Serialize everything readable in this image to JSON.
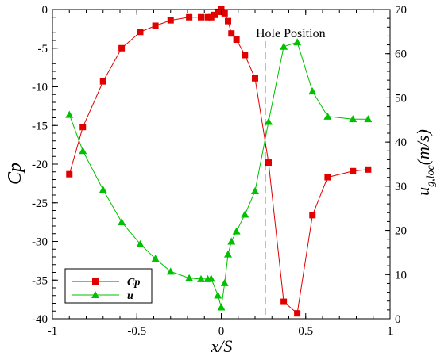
{
  "chart_data": {
    "type": "line",
    "xlabel": "x/S",
    "ylabel_left": "Cp",
    "ylabel_right_main": "u",
    "ylabel_right_sub": "g,loc",
    "ylabel_right_unit": "(m/s)",
    "xlim": [
      -1,
      1
    ],
    "ylim_left": [
      -40,
      0
    ],
    "ylim_right": [
      0,
      70
    ],
    "x_ticks": [
      "-1",
      "-0.5",
      "0",
      "0.5",
      "1"
    ],
    "y_left_ticks": [
      "0",
      "-5",
      "-10",
      "-15",
      "-20",
      "-25",
      "-30",
      "-35",
      "-40"
    ],
    "y_right_ticks": [
      "0",
      "10",
      "20",
      "30",
      "40",
      "50",
      "60",
      "70"
    ],
    "annotation": {
      "text": "Hole Position",
      "x": 0.26
    },
    "legend": {
      "placement": "bottom-left",
      "entries": [
        "Cp",
        "u"
      ]
    },
    "series": [
      {
        "name": "Cp",
        "axis": "left",
        "color": "#e00000",
        "marker": "square",
        "x": [
          -0.9,
          -0.82,
          -0.7,
          -0.59,
          -0.48,
          -0.39,
          -0.3,
          -0.19,
          -0.12,
          -0.08,
          -0.06,
          -0.04,
          -0.02,
          0.0,
          0.02,
          0.04,
          0.06,
          0.09,
          0.14,
          0.2,
          0.28,
          0.37,
          0.45,
          0.54,
          0.63,
          0.78,
          0.87
        ],
        "values": [
          -21.3,
          -15.2,
          -9.3,
          -5.0,
          -2.9,
          -2.1,
          -1.4,
          -1.0,
          -1.0,
          -1.0,
          -1.0,
          -0.7,
          -0.3,
          0.0,
          -0.5,
          -1.5,
          -3.1,
          -3.9,
          -5.9,
          -8.9,
          -19.8,
          -37.8,
          -39.3,
          -26.6,
          -21.7,
          -20.9,
          -20.7
        ]
      },
      {
        "name": "u",
        "axis": "right",
        "color": "#00c000",
        "marker": "triangle",
        "x": [
          -0.9,
          -0.82,
          -0.7,
          -0.59,
          -0.48,
          -0.39,
          -0.3,
          -0.19,
          -0.12,
          -0.08,
          -0.06,
          -0.02,
          0.0,
          0.02,
          0.04,
          0.06,
          0.09,
          0.14,
          0.2,
          0.28,
          0.37,
          0.45,
          0.54,
          0.63,
          0.78,
          0.87
        ],
        "values": [
          46.2,
          38.0,
          29.2,
          21.9,
          16.9,
          13.6,
          10.7,
          9.2,
          9.0,
          9.0,
          9.1,
          5.3,
          2.6,
          8.1,
          14.6,
          17.5,
          19.8,
          23.6,
          28.9,
          44.6,
          61.6,
          62.6,
          51.5,
          45.8,
          45.2,
          45.2
        ]
      }
    ]
  }
}
